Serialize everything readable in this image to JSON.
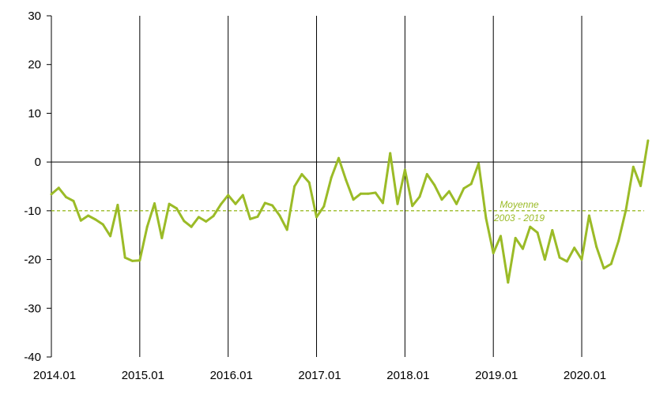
{
  "chart_data": {
    "type": "line",
    "title": "",
    "xlabel": "",
    "ylabel": "",
    "ylim": [
      -40,
      30
    ],
    "y_ticks": [
      30,
      20,
      10,
      0,
      -10,
      -20,
      -30,
      -40
    ],
    "x_tick_labels": [
      "2014.01",
      "2015.01",
      "2016.01",
      "2017.01",
      "2018.01",
      "2019.01",
      "2020.01"
    ],
    "x_start": "2014.01",
    "grid": "vertical lines at each year",
    "series": [
      {
        "color": "#9bbb27",
        "values": [
          -6.6,
          -5.3,
          -7.2,
          -8.0,
          -12.0,
          -11.0,
          -11.8,
          -12.8,
          -15.2,
          -8.8,
          -19.6,
          -20.3,
          -20.2,
          -13.3,
          -8.5,
          -15.6,
          -8.6,
          -9.5,
          -12.1,
          -13.3,
          -11.3,
          -12.2,
          -11.1,
          -8.7,
          -6.8,
          -8.6,
          -6.8,
          -11.7,
          -11.2,
          -8.4,
          -8.9,
          -11.0,
          -13.9,
          -5.0,
          -2.5,
          -4.2,
          -11.3,
          -9.1,
          -3.2,
          0.8,
          -3.7,
          -7.7,
          -6.5,
          -6.5,
          -6.3,
          -8.4,
          1.8,
          -8.6,
          -1.6,
          -9.0,
          -7.1,
          -2.5,
          -4.7,
          -7.7,
          -6.0,
          -8.6,
          -5.4,
          -4.5,
          -0.3,
          -11.5,
          -18.7,
          -15.2,
          -24.7,
          -15.6,
          -17.8,
          -13.3,
          -14.5,
          -20.0,
          -14.0,
          -19.6,
          -20.4,
          -17.6,
          -20.0,
          -11.0,
          -17.4,
          -21.8,
          -20.9,
          -16.2,
          -9.8,
          -1.0,
          -4.9,
          4.4
        ]
      }
    ],
    "reference_line": {
      "value": -10,
      "label_line1": "Moyenne",
      "label_line2": "2003 - 2019",
      "color": "#9bbb27",
      "style": "dashed"
    }
  }
}
